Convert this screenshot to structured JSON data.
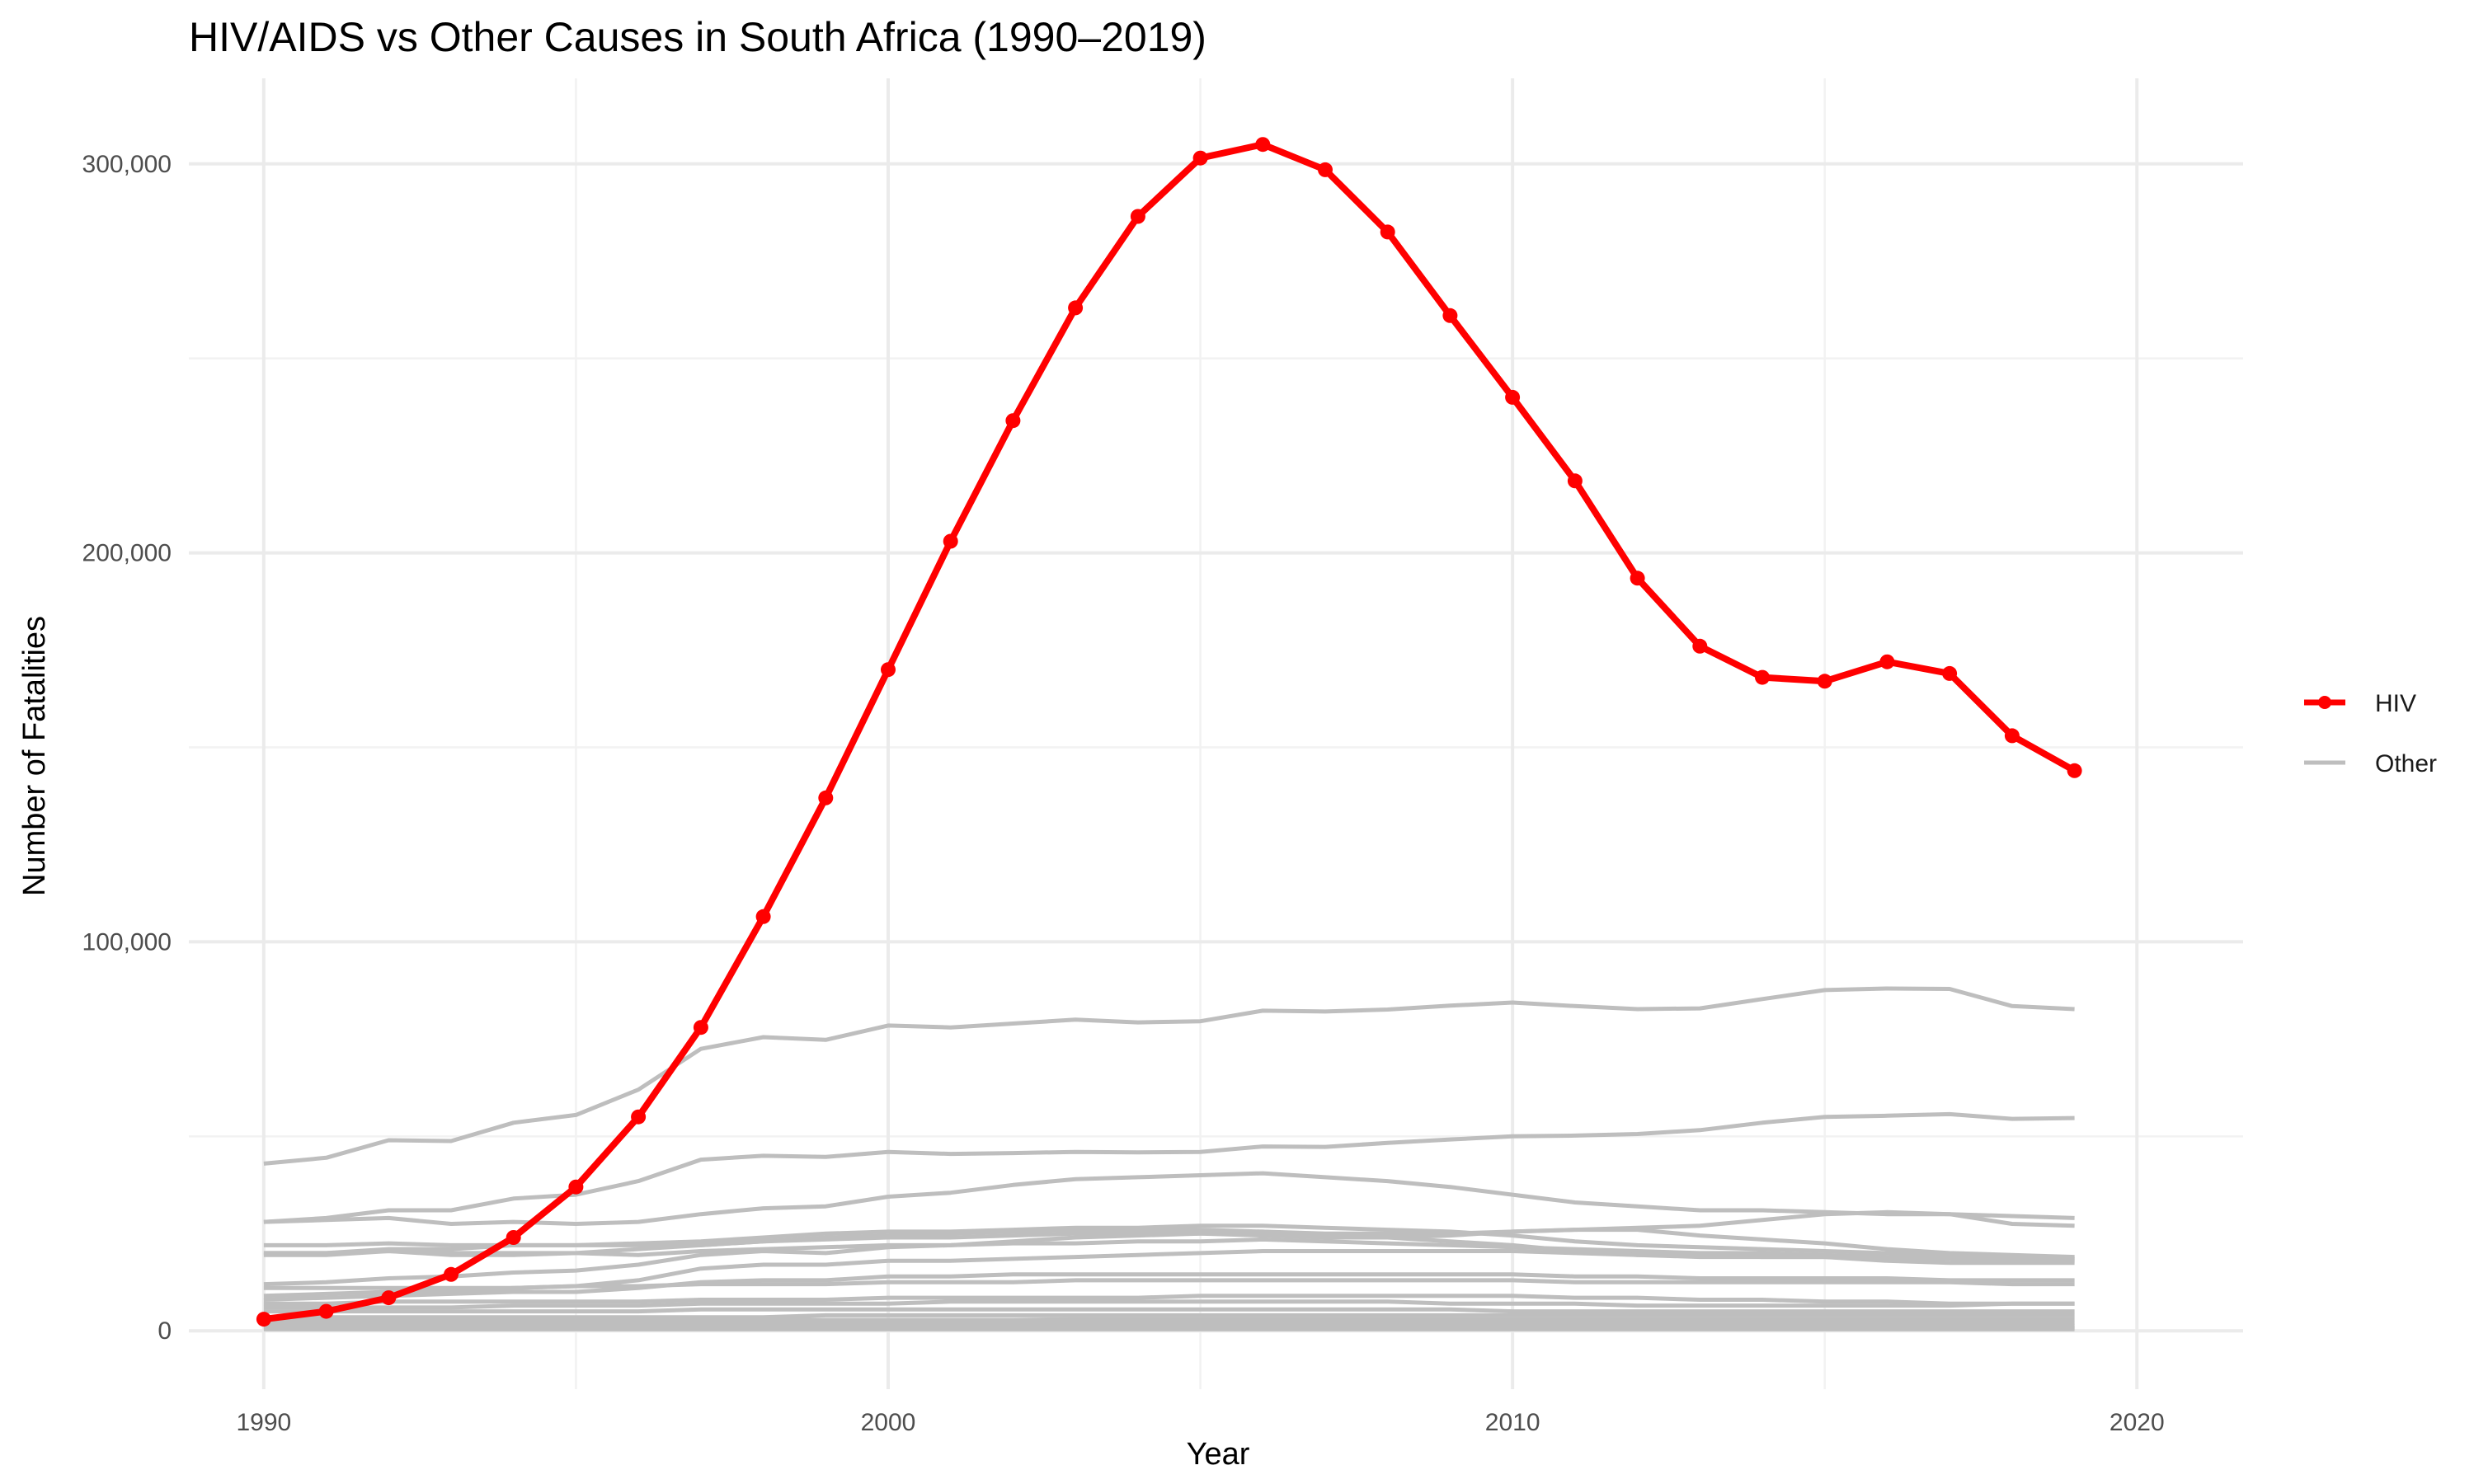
{
  "chart_data": {
    "type": "line",
    "title": "HIV/AIDS vs Other Causes in South Africa (1990–2019)",
    "xlabel": "Year",
    "ylabel": "Number of Fatalities",
    "xlim": [
      1988.8,
      2021.7
    ],
    "ylim": [
      -15000,
      322000
    ],
    "xticks": [
      1990,
      2000,
      2010,
      2020
    ],
    "xtick_labels": [
      "1990",
      "2000",
      "2010",
      "2020"
    ],
    "yticks": [
      0,
      100000,
      200000,
      300000
    ],
    "ytick_labels": [
      "0",
      "100,000",
      "200,000",
      "300,000"
    ],
    "grid": true,
    "legend_position": "right",
    "legend": [
      {
        "label": "HIV",
        "color": "#ff0000",
        "style": "line-point"
      },
      {
        "label": "Other",
        "color": "#bebebe",
        "style": "line"
      }
    ],
    "x": [
      1990,
      1991,
      1992,
      1993,
      1994,
      1995,
      1996,
      1997,
      1998,
      1999,
      2000,
      2001,
      2002,
      2003,
      2004,
      2005,
      2006,
      2007,
      2008,
      2009,
      2010,
      2011,
      2012,
      2013,
      2014,
      2015,
      2016,
      2017,
      2018,
      2019
    ],
    "highlight_series": {
      "name": "HIV",
      "color": "#ff0000",
      "values": [
        3000,
        5000,
        8500,
        14500,
        24000,
        37000,
        55000,
        78000,
        106500,
        137000,
        170000,
        203000,
        234000,
        263000,
        286500,
        301500,
        305000,
        298500,
        282500,
        261000,
        240000,
        218500,
        193500,
        176000,
        168000,
        167000,
        172000,
        169000,
        153000,
        144000
      ]
    },
    "other_series": {
      "color": "#bebebe",
      "values": [
        [
          43000,
          44500,
          49000,
          48800,
          53500,
          55500,
          62000,
          72500,
          75500,
          74800,
          78500,
          78000,
          79000,
          80000,
          79300,
          79600,
          82300,
          82100,
          82600,
          83600,
          84400,
          83500,
          82700,
          82900,
          85300,
          87600,
          88000,
          87900,
          83500,
          82700
        ],
        [
          28000,
          29000,
          31000,
          31000,
          34000,
          35000,
          38500,
          44000,
          45000,
          44700,
          46000,
          45500,
          45700,
          46000,
          45900,
          46000,
          47400,
          47300,
          48300,
          49200,
          50000,
          50200,
          50600,
          51600,
          53500,
          55000,
          55300,
          55700,
          54500,
          54700
        ],
        [
          28000,
          28500,
          29000,
          27500,
          28000,
          27500,
          28000,
          30000,
          31500,
          32000,
          34500,
          35500,
          37500,
          39000,
          39500,
          40000,
          40500,
          39500,
          38500,
          37000,
          35000,
          33000,
          32000,
          31000,
          31000,
          30500,
          30000,
          30000,
          29500,
          29000
        ],
        [
          20000,
          20000,
          21000,
          21000,
          22000,
          22000,
          22500,
          23000,
          24000,
          25000,
          25500,
          25500,
          26000,
          26500,
          26500,
          27000,
          27000,
          26500,
          26000,
          25500,
          24500,
          23000,
          22000,
          21500,
          21000,
          20500,
          20000,
          19500,
          19000,
          18500
        ],
        [
          19500,
          19500,
          20500,
          20000,
          20000,
          20000,
          19500,
          20500,
          21000,
          21500,
          22000,
          22000,
          22500,
          22500,
          23000,
          23000,
          23500,
          23000,
          22500,
          22000,
          21500,
          21000,
          20500,
          20000,
          20000,
          19500,
          19000,
          19000,
          18500,
          18500
        ],
        [
          22000,
          22000,
          22500,
          22000,
          22000,
          22000,
          22000,
          22000,
          23000,
          24000,
          24500,
          25000,
          25500,
          26000,
          26000,
          26000,
          25500,
          24500,
          24000,
          23000,
          22000,
          20500,
          19500,
          19000,
          19000,
          19000,
          18000,
          17500,
          17500,
          17500
        ],
        [
          20000,
          20000,
          20500,
          19500,
          19500,
          20000,
          21000,
          22000,
          23000,
          23500,
          24000,
          24000,
          24500,
          25000,
          25000,
          25000,
          24500,
          24000,
          24000,
          24500,
          25500,
          26000,
          26000,
          24500,
          23500,
          22500,
          21000,
          20000,
          19500,
          19000
        ],
        [
          12000,
          12500,
          13500,
          14000,
          15000,
          15500,
          17000,
          19500,
          20500,
          20000,
          21500,
          22000,
          23000,
          24000,
          24500,
          25000,
          25500,
          25000,
          25000,
          25000,
          25500,
          26000,
          26500,
          27000,
          28500,
          30000,
          30500,
          30000,
          27500,
          27000
        ],
        [
          9000,
          9500,
          10000,
          10000,
          11000,
          11500,
          13000,
          16000,
          17000,
          17000,
          18000,
          18000,
          18500,
          19000,
          19500,
          20000,
          20500,
          20500,
          20500,
          20500,
          20500,
          20000,
          19500,
          19500,
          19000,
          19000,
          18500,
          18500,
          18000,
          18000
        ],
        [
          8000,
          8500,
          9000,
          9500,
          10000,
          10000,
          11000,
          12500,
          13000,
          13000,
          14000,
          14000,
          14500,
          14500,
          14500,
          14500,
          14500,
          14500,
          14500,
          14500,
          14500,
          14000,
          14000,
          13500,
          13500,
          13500,
          13500,
          13000,
          13000,
          13000
        ],
        [
          11000,
          11000,
          11000,
          11000,
          11000,
          11500,
          11500,
          12000,
          12000,
          12000,
          12500,
          12500,
          12500,
          13000,
          13000,
          13000,
          13000,
          13000,
          13000,
          13000,
          13000,
          12500,
          12500,
          12500,
          12500,
          12500,
          12500,
          12500,
          12000,
          12000
        ],
        [
          7000,
          7000,
          7500,
          7500,
          7500,
          7500,
          7500,
          8000,
          8000,
          8000,
          8500,
          8500,
          8500,
          8500,
          8500,
          9000,
          9000,
          9000,
          9000,
          9000,
          9000,
          8500,
          8500,
          8000,
          8000,
          7500,
          7500,
          7000,
          7000,
          7000
        ],
        [
          6000,
          6000,
          6000,
          6000,
          6500,
          6500,
          6500,
          7000,
          7000,
          7000,
          7000,
          7500,
          7500,
          7500,
          7500,
          7500,
          7500,
          7500,
          7500,
          7000,
          7000,
          7000,
          6500,
          6500,
          6500,
          6500,
          6500,
          6500,
          7000,
          7000
        ],
        [
          5000,
          5000,
          5000,
          5000,
          5000,
          5000,
          5000,
          5500,
          5500,
          5500,
          5500,
          5500,
          5500,
          5500,
          5500,
          5500,
          5500,
          5500,
          5500,
          5500,
          5000,
          5000,
          5000,
          5000,
          5000,
          5000,
          5000,
          5000,
          5000,
          5000
        ],
        [
          3500,
          3500,
          3500,
          3500,
          3500,
          3500,
          3500,
          3500,
          3500,
          4000,
          4000,
          4000,
          4000,
          4000,
          4000,
          4000,
          4000,
          4000,
          4000,
          4000,
          4000,
          4000,
          4000,
          4000,
          4000,
          4000,
          4000,
          4000,
          4000,
          4000
        ],
        [
          2500,
          2500,
          2500,
          2500,
          2500,
          2500,
          2500,
          2800,
          2800,
          2800,
          2800,
          2800,
          2800,
          3000,
          3000,
          3000,
          3000,
          3000,
          3000,
          3000,
          3000,
          3000,
          3000,
          3000,
          3000,
          3000,
          3000,
          3000,
          3000,
          3000
        ],
        [
          1800,
          1800,
          1800,
          1800,
          1800,
          1800,
          1800,
          1800,
          2000,
          2000,
          2000,
          2000,
          2000,
          2000,
          2000,
          2000,
          2000,
          2000,
          2000,
          2000,
          2000,
          2000,
          2000,
          2000,
          2000,
          2000,
          2000,
          2000,
          2000,
          2000
        ],
        [
          1200,
          1200,
          1200,
          1200,
          1200,
          1200,
          1200,
          1200,
          1200,
          1200,
          1300,
          1300,
          1300,
          1300,
          1300,
          1300,
          1300,
          1300,
          1300,
          1300,
          1300,
          1300,
          1300,
          1300,
          1300,
          1300,
          1300,
          1300,
          1300,
          1300
        ],
        [
          800,
          800,
          800,
          800,
          800,
          800,
          800,
          800,
          800,
          800,
          800,
          800,
          800,
          800,
          800,
          800,
          800,
          800,
          800,
          800,
          800,
          800,
          800,
          800,
          800,
          800,
          800,
          800,
          800,
          800
        ],
        [
          400,
          400,
          400,
          400,
          400,
          400,
          400,
          400,
          400,
          400,
          400,
          400,
          400,
          400,
          400,
          400,
          400,
          400,
          400,
          400,
          400,
          400,
          400,
          400,
          400,
          400,
          400,
          400,
          400,
          400
        ]
      ]
    }
  }
}
